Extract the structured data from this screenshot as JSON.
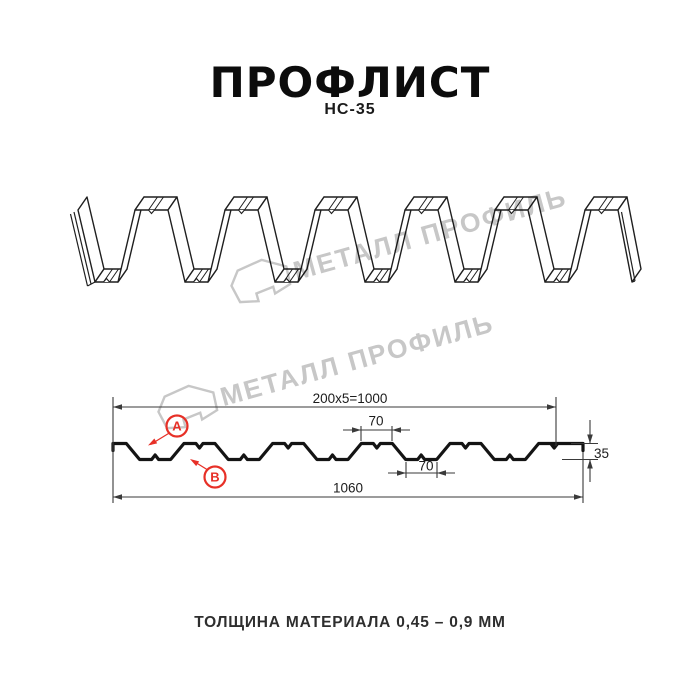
{
  "header": {
    "title": "ПРОФЛИСТ",
    "subtitle": "НС-35"
  },
  "footer": {
    "note": "ТОЛЩИНА МАТЕРИАЛА 0,45 – 0,9 ММ"
  },
  "watermark": {
    "brand": "МЕТАЛЛ ПРОФИЛЬ",
    "color": "#c7c7c7"
  },
  "diagram": {
    "accent_red": "#e73027",
    "side_labels": {
      "a": "A",
      "b": "B"
    },
    "dimensions": {
      "working_width": "200x5=1000",
      "top_flange_width": "70",
      "bottom_flange_width": "70",
      "profile_height": "35",
      "overall_width": "1060"
    }
  }
}
